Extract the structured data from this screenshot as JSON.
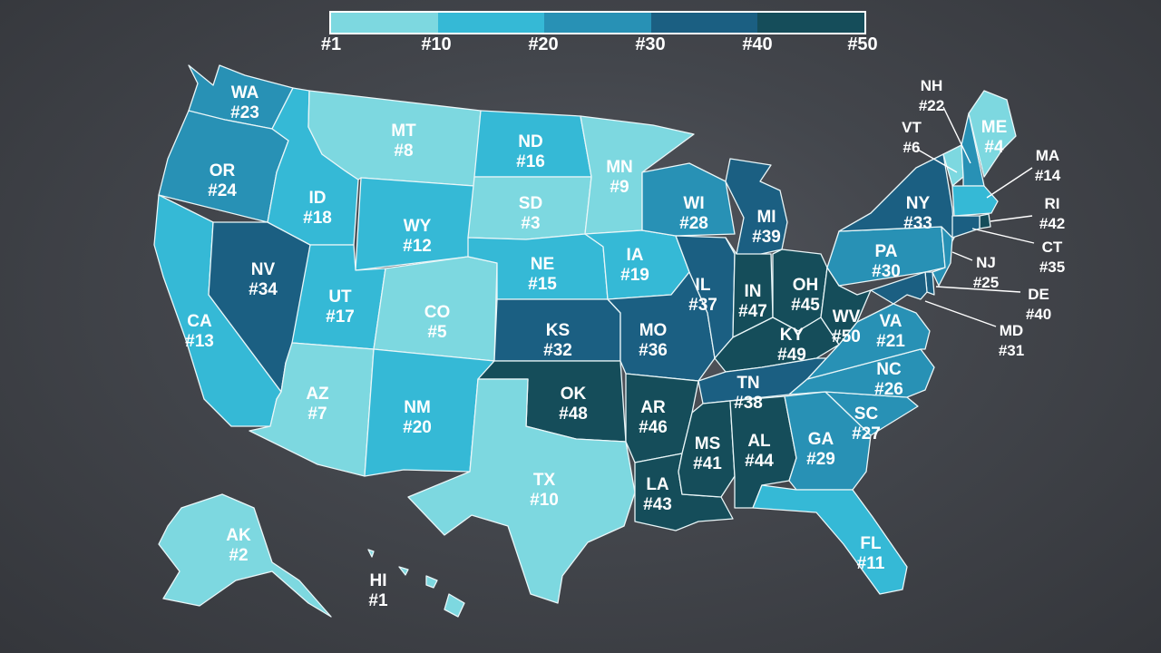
{
  "legend": {
    "ticks": [
      "#1",
      "#10",
      "#20",
      "#30",
      "#40",
      "#50"
    ],
    "colors": [
      "#7dd8e0",
      "#35b9d6",
      "#2891b5",
      "#1b5f82",
      "#154d5a"
    ]
  },
  "colors": {
    "rank_1_10": "#7dd8e0",
    "rank_11_20": "#35b9d6",
    "rank_21_30": "#2891b5",
    "rank_31_40": "#1b5f82",
    "rank_41_50": "#154d5a",
    "background": "#43464c"
  },
  "states": [
    {
      "abbr": "WA",
      "rank": "#23"
    },
    {
      "abbr": "OR",
      "rank": "#24"
    },
    {
      "abbr": "CA",
      "rank": "#13"
    },
    {
      "abbr": "NV",
      "rank": "#34"
    },
    {
      "abbr": "ID",
      "rank": "#18"
    },
    {
      "abbr": "MT",
      "rank": "#8"
    },
    {
      "abbr": "WY",
      "rank": "#12"
    },
    {
      "abbr": "UT",
      "rank": "#17"
    },
    {
      "abbr": "AZ",
      "rank": "#7"
    },
    {
      "abbr": "CO",
      "rank": "#5"
    },
    {
      "abbr": "NM",
      "rank": "#20"
    },
    {
      "abbr": "ND",
      "rank": "#16"
    },
    {
      "abbr": "SD",
      "rank": "#3"
    },
    {
      "abbr": "NE",
      "rank": "#15"
    },
    {
      "abbr": "KS",
      "rank": "#32"
    },
    {
      "abbr": "OK",
      "rank": "#48"
    },
    {
      "abbr": "TX",
      "rank": "#10"
    },
    {
      "abbr": "MN",
      "rank": "#9"
    },
    {
      "abbr": "IA",
      "rank": "#19"
    },
    {
      "abbr": "MO",
      "rank": "#36"
    },
    {
      "abbr": "AR",
      "rank": "#46"
    },
    {
      "abbr": "LA",
      "rank": "#43"
    },
    {
      "abbr": "WI",
      "rank": "#28"
    },
    {
      "abbr": "IL",
      "rank": "#37"
    },
    {
      "abbr": "MI",
      "rank": "#39"
    },
    {
      "abbr": "IN",
      "rank": "#47"
    },
    {
      "abbr": "OH",
      "rank": "#45"
    },
    {
      "abbr": "KY",
      "rank": "#49"
    },
    {
      "abbr": "TN",
      "rank": "#38"
    },
    {
      "abbr": "MS",
      "rank": "#41"
    },
    {
      "abbr": "AL",
      "rank": "#44"
    },
    {
      "abbr": "GA",
      "rank": "#29"
    },
    {
      "abbr": "FL",
      "rank": "#11"
    },
    {
      "abbr": "SC",
      "rank": "#27"
    },
    {
      "abbr": "NC",
      "rank": "#26"
    },
    {
      "abbr": "VA",
      "rank": "#21"
    },
    {
      "abbr": "WV",
      "rank": "#50"
    },
    {
      "abbr": "PA",
      "rank": "#30"
    },
    {
      "abbr": "NY",
      "rank": "#33"
    },
    {
      "abbr": "VT",
      "rank": "#6"
    },
    {
      "abbr": "NH",
      "rank": "#22"
    },
    {
      "abbr": "ME",
      "rank": "#4"
    },
    {
      "abbr": "MA",
      "rank": "#14"
    },
    {
      "abbr": "RI",
      "rank": "#42"
    },
    {
      "abbr": "CT",
      "rank": "#35"
    },
    {
      "abbr": "NJ",
      "rank": "#25"
    },
    {
      "abbr": "DE",
      "rank": "#40"
    },
    {
      "abbr": "MD",
      "rank": "#31"
    },
    {
      "abbr": "AK",
      "rank": "#2"
    },
    {
      "abbr": "HI",
      "rank": "#1"
    }
  ]
}
